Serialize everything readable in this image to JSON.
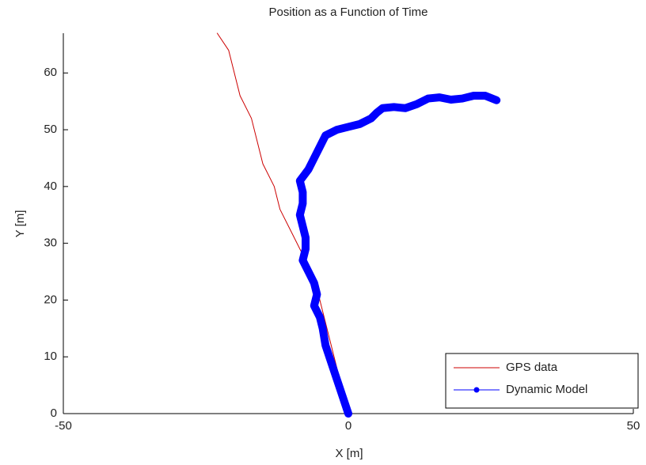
{
  "chart_data": {
    "type": "line",
    "title": "Position as a Function of Time",
    "xlabel": "X [m]",
    "ylabel": "Y [m]",
    "xlim": [
      -50,
      50
    ],
    "ylim": [
      0,
      67
    ],
    "xticks": [
      -50,
      0,
      50
    ],
    "yticks": [
      0,
      10,
      20,
      30,
      40,
      50,
      60
    ],
    "legend": "lower right",
    "series": [
      {
        "name": "GPS data",
        "color": "#cc0000",
        "x": [
          0,
          -1,
          -2,
          -3,
          -4,
          -5,
          -6,
          -8,
          -10,
          -12,
          -13,
          -15,
          -16,
          -17,
          -19,
          -20,
          -21,
          -23
        ],
        "values": [
          0,
          4,
          8,
          12,
          16,
          20,
          24,
          28,
          32,
          36,
          40,
          44,
          48,
          52,
          56,
          60,
          64,
          67
        ]
      },
      {
        "name": "Dynamic Model",
        "color": "#0000ff",
        "x": [
          0,
          -1,
          -2,
          -3,
          -4,
          -4.5,
          -5,
          -6,
          -5.5,
          -6,
          -7,
          -8,
          -7.5,
          -7.5,
          -8,
          -8.5,
          -8,
          -8,
          -8.5,
          -7,
          -6,
          -5,
          -4,
          -2,
          0,
          2,
          4,
          5,
          6,
          8,
          10,
          12,
          14,
          16,
          18,
          20,
          22,
          24,
          26
        ],
        "values": [
          0,
          3,
          6,
          9,
          12,
          15,
          17,
          19,
          21,
          23,
          25,
          27,
          29,
          31,
          33,
          35,
          37,
          39,
          41,
          43,
          45,
          47,
          49,
          50,
          50.5,
          51,
          52,
          53,
          53.8,
          54,
          53.8,
          54.5,
          55.5,
          55.7,
          55.3,
          55.5,
          56,
          56,
          55.2
        ]
      }
    ]
  }
}
